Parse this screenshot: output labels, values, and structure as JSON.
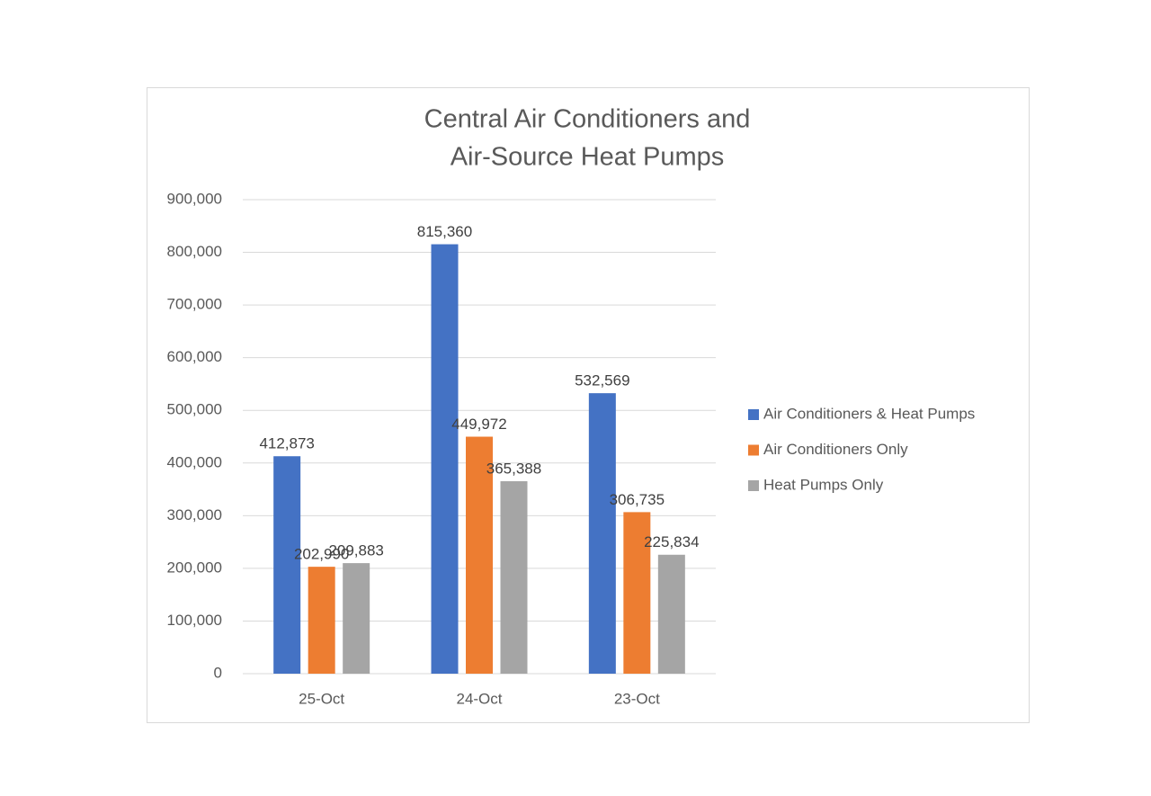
{
  "chart_data": {
    "type": "bar",
    "title": [
      "Central Air Conditioners and",
      "Air-Source Heat Pumps"
    ],
    "categories": [
      "25-Oct",
      "24-Oct",
      "23-Oct"
    ],
    "series": [
      {
        "name": "Air Conditioners & Heat Pumps",
        "color": "#4472c4",
        "values": [
          412873,
          815360,
          532569
        ],
        "value_labels": [
          "412,873",
          "815,360",
          "532,569"
        ]
      },
      {
        "name": "Air Conditioners Only",
        "color": "#ed7d31",
        "values": [
          202990,
          449972,
          306735
        ],
        "value_labels": [
          "202,990",
          "449,972",
          "306,735"
        ]
      },
      {
        "name": "Heat Pumps Only",
        "color": "#a5a5a5",
        "values": [
          209883,
          365388,
          225834
        ],
        "value_labels": [
          "209,883",
          "365,388",
          "225,834"
        ]
      }
    ],
    "ylim": [
      0,
      900000
    ],
    "yticks": [
      0,
      {
        "value": 100000,
        "label": "100,000"
      },
      {
        "value": 200000,
        "label": "200,000"
      },
      {
        "value": 300000,
        "label": "300,000"
      },
      {
        "value": 400000,
        "label": "400,000"
      },
      {
        "value": 500000,
        "label": "500,000"
      },
      {
        "value": 600000,
        "label": "600,000"
      },
      {
        "value": 700000,
        "label": "700,000"
      },
      {
        "value": 800000,
        "label": "800,000"
      },
      {
        "value": 900000,
        "label": "900,000"
      }
    ],
    "grid": true,
    "legend": "right"
  }
}
